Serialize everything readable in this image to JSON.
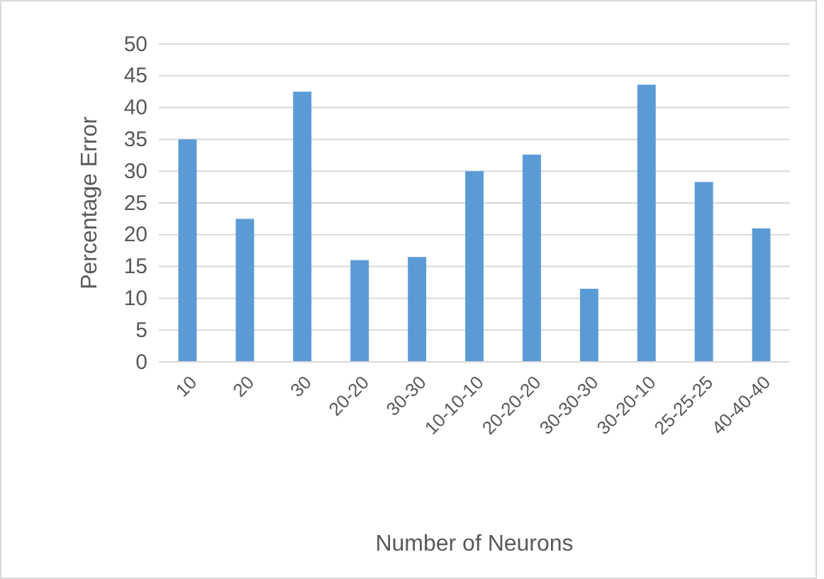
{
  "chart_data": {
    "type": "bar",
    "xlabel": "Number of Neurons",
    "ylabel": "Percentage Error",
    "categories": [
      "10",
      "20",
      "30",
      "20-20",
      "30-30",
      "10-10-10",
      "20-20-20",
      "30-30-30",
      "30-20-10",
      "25-25-25",
      "40-40-40"
    ],
    "values": [
      35,
      22.5,
      42.5,
      16,
      16.5,
      30,
      32.6,
      11.5,
      43.6,
      28.3,
      21
    ],
    "color": "#5b9bd5",
    "ylim": [
      0,
      50
    ],
    "yticks": [
      0,
      5,
      10,
      15,
      20,
      25,
      30,
      35,
      40,
      45,
      50
    ],
    "grid": "y"
  }
}
